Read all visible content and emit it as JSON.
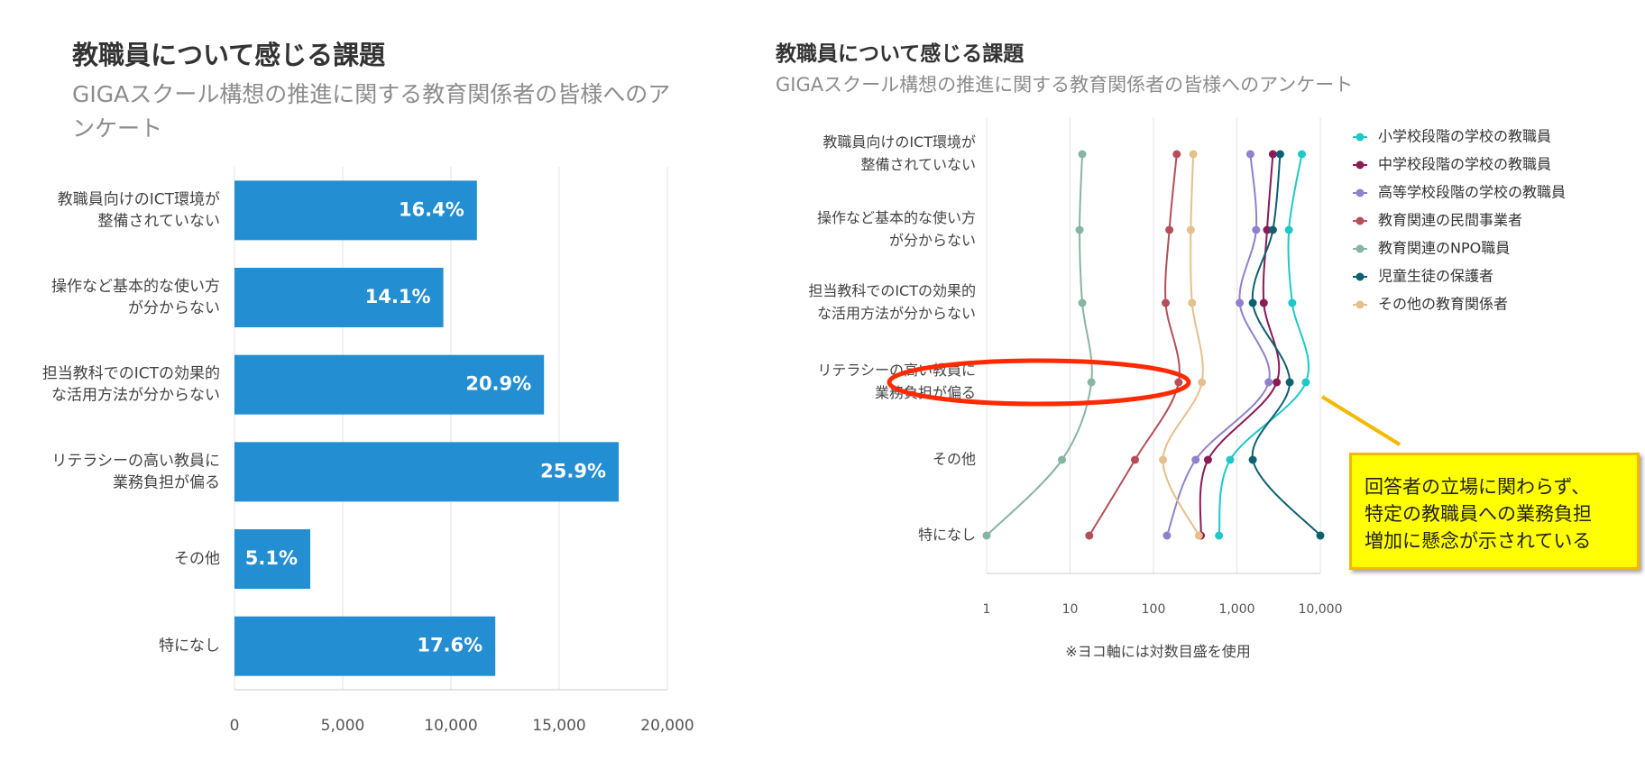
{
  "left_panel": {
    "title": "教職員について感じる課題",
    "subtitle": "GIGAスクール構想の推進に関する教育関係者の皆様へのアンケート"
  },
  "right_panel": {
    "title": "教職員について感じる課題",
    "subtitle": "GIGAスクール構想の推進に関する教育関係者の皆様へのアンケート",
    "note": "※ヨコ軸には対数目盛を使用"
  },
  "callout": {
    "lines": [
      "回答者の立場に関わらず、",
      "特定の教職員への業務負担",
      "増加に懸念が示されている"
    ],
    "border_color": "#f5b800",
    "fill_color": "#ffff00"
  },
  "highlight": {
    "color": "#ff2a00",
    "category_index": 3
  },
  "chart_data": [
    {
      "type": "bar",
      "orientation": "horizontal",
      "categories": [
        [
          "教職員向けのICT環境が",
          "整備されていない"
        ],
        [
          "操作など基本的な使い方",
          "が分からない"
        ],
        [
          "担当教科でのICTの効果的",
          "な活用方法が分からない"
        ],
        [
          "リテラシーの高い教員に",
          "業務負担が偏る"
        ],
        [
          "その他"
        ],
        [
          "特になし"
        ]
      ],
      "values": [
        11200,
        9650,
        14300,
        17750,
        3500,
        12050
      ],
      "data_labels": [
        "16.4%",
        "14.1%",
        "20.9%",
        "25.9%",
        "5.1%",
        "17.6%"
      ],
      "xlim": [
        0,
        20000
      ],
      "x_ticks": [
        0,
        5000,
        10000,
        15000,
        20000
      ],
      "x_tick_labels": [
        "0",
        "5,000",
        "10,000",
        "15,000",
        "20,000"
      ],
      "grid": true,
      "bar_color": "#238ed2"
    },
    {
      "type": "line",
      "x_scale": "log",
      "categories": [
        [
          "教職員向けのICT環境が",
          "整備されていない"
        ],
        [
          "操作など基本的な使い方",
          "が分からない"
        ],
        [
          "担当教科でのICTの効果的",
          "な活用方法が分からない"
        ],
        [
          "リテラシーの高い教員に",
          "業務負担が偏る"
        ],
        [
          "その他"
        ],
        [
          "特になし"
        ]
      ],
      "xlim": [
        1,
        10000
      ],
      "x_ticks": [
        1,
        10,
        100,
        1000,
        10000
      ],
      "x_tick_labels": [
        "1",
        "10",
        "100",
        "1,000",
        "10,000"
      ],
      "grid": true,
      "legend_position": "top-right",
      "series": [
        {
          "name": "小学校段階の学校の教職員",
          "color": "#1fc8c8",
          "values": [
            6000,
            4200,
            4600,
            6700,
            830,
            610
          ]
        },
        {
          "name": "中学校段階の学校の教職員",
          "color": "#8c1a55",
          "values": [
            2700,
            2300,
            2100,
            3000,
            450,
            370
          ]
        },
        {
          "name": "高等学校段階の学校の教職員",
          "color": "#9180cc",
          "values": [
            1450,
            1700,
            1080,
            2400,
            320,
            145
          ]
        },
        {
          "name": "教育関連の民間事業者",
          "color": "#b54e58",
          "values": [
            190,
            155,
            140,
            200,
            60,
            17
          ]
        },
        {
          "name": "教育関連のNPO職員",
          "color": "#88b5a0",
          "values": [
            14,
            13,
            14,
            18,
            8,
            1
          ]
        },
        {
          "name": "児童生徒の保護者",
          "color": "#0d6070",
          "values": [
            3300,
            2700,
            1550,
            4300,
            1550,
            10000
          ]
        },
        {
          "name": "その他の教育関係者",
          "color": "#e6bf8c",
          "values": [
            300,
            280,
            290,
            380,
            130,
            350
          ]
        }
      ]
    }
  ]
}
